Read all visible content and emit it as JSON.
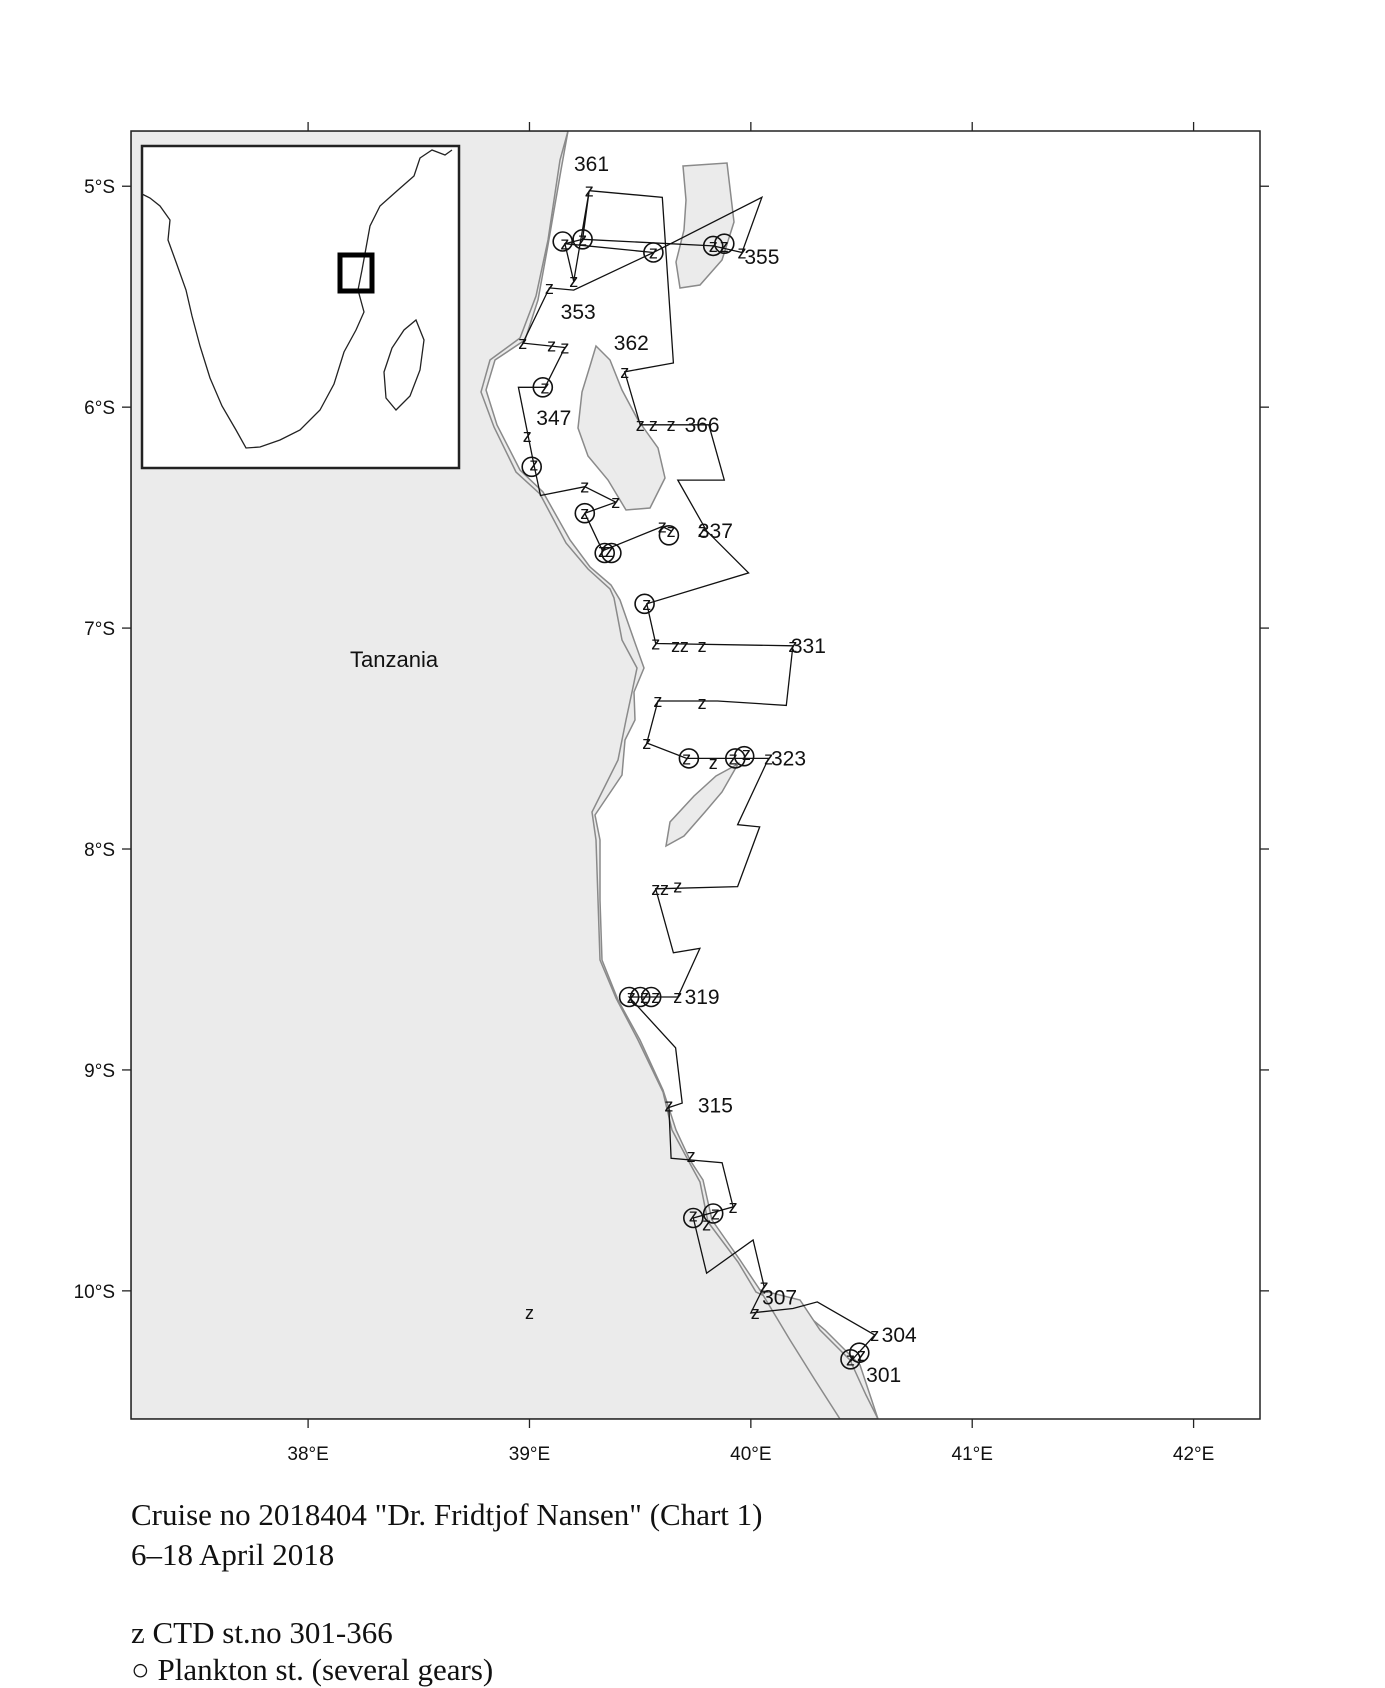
{
  "map": {
    "lon_range": [
      37.2,
      42.3
    ],
    "lat_range": [
      -10.58,
      -4.75
    ],
    "x_ticks": [
      38,
      39,
      40,
      41,
      42
    ],
    "y_ticks": [
      -5,
      -6,
      -7,
      -8,
      -9,
      -10
    ],
    "x_tick_labels": [
      "38°E",
      "39°E",
      "40°E",
      "41°E",
      "42°E"
    ],
    "y_tick_labels": [
      "5°S",
      "6°S",
      "7°S",
      "8°S",
      "9°S",
      "10°S"
    ],
    "country_label": "Tanzania",
    "land_color": "#ebebeb",
    "coast_color": "#8a8a8a",
    "station_labels": [
      {
        "text": "361",
        "lon": 39.28,
        "lat": -4.9
      },
      {
        "text": "355",
        "lon": 40.05,
        "lat": -5.32
      },
      {
        "text": "353",
        "lon": 39.22,
        "lat": -5.57
      },
      {
        "text": "362",
        "lon": 39.46,
        "lat": -5.71
      },
      {
        "text": "347",
        "lon": 39.11,
        "lat": -6.05
      },
      {
        "text": "366",
        "lon": 39.78,
        "lat": -6.08
      },
      {
        "text": "337",
        "lon": 39.84,
        "lat": -6.56
      },
      {
        "text": "331",
        "lon": 40.26,
        "lat": -7.08
      },
      {
        "text": "323",
        "lon": 40.17,
        "lat": -7.59
      },
      {
        "text": "319",
        "lon": 39.78,
        "lat": -8.67
      },
      {
        "text": "315",
        "lon": 39.84,
        "lat": -9.16
      },
      {
        "text": "307",
        "lon": 40.13,
        "lat": -10.03
      },
      {
        "text": "304",
        "lon": 40.67,
        "lat": -10.2
      },
      {
        "text": "301",
        "lon": 40.6,
        "lat": -10.38
      }
    ],
    "ctd_stations": [
      [
        39.27,
        -5.02
      ],
      [
        39.16,
        -5.26
      ],
      [
        39.24,
        -5.24
      ],
      [
        39.56,
        -5.3
      ],
      [
        39.83,
        -5.27
      ],
      [
        39.88,
        -5.27
      ],
      [
        39.96,
        -5.3
      ],
      [
        39.2,
        -5.43
      ],
      [
        39.09,
        -5.46
      ],
      [
        38.97,
        -5.71
      ],
      [
        39.1,
        -5.72
      ],
      [
        39.16,
        -5.73
      ],
      [
        39.43,
        -5.84
      ],
      [
        39.07,
        -5.91
      ],
      [
        39.5,
        -6.08
      ],
      [
        39.56,
        -6.08
      ],
      [
        39.64,
        -6.08
      ],
      [
        38.99,
        -6.13
      ],
      [
        39.02,
        -6.26
      ],
      [
        39.25,
        -6.36
      ],
      [
        39.39,
        -6.43
      ],
      [
        39.25,
        -6.48
      ],
      [
        39.6,
        -6.54
      ],
      [
        39.64,
        -6.56
      ],
      [
        39.78,
        -6.56
      ],
      [
        39.33,
        -6.65
      ],
      [
        39.36,
        -6.65
      ],
      [
        39.53,
        -6.89
      ],
      [
        39.57,
        -7.07
      ],
      [
        39.66,
        -7.08
      ],
      [
        39.7,
        -7.08
      ],
      [
        39.78,
        -7.08
      ],
      [
        40.19,
        -7.08
      ],
      [
        39.58,
        -7.33
      ],
      [
        39.78,
        -7.34
      ],
      [
        39.53,
        -7.52
      ],
      [
        39.71,
        -7.59
      ],
      [
        39.83,
        -7.61
      ],
      [
        39.92,
        -7.59
      ],
      [
        39.98,
        -7.57
      ],
      [
        40.08,
        -7.59
      ],
      [
        39.57,
        -8.18
      ],
      [
        39.61,
        -8.18
      ],
      [
        39.67,
        -8.17
      ],
      [
        39.46,
        -8.67
      ],
      [
        39.52,
        -8.67
      ],
      [
        39.57,
        -8.67
      ],
      [
        39.67,
        -8.67
      ],
      [
        39.63,
        -9.16
      ],
      [
        39.73,
        -9.39
      ],
      [
        39.74,
        -9.66
      ],
      [
        39.8,
        -9.7
      ],
      [
        39.84,
        -9.65
      ],
      [
        39.92,
        -9.62
      ],
      [
        39.0,
        -10.1
      ],
      [
        40.06,
        -9.98
      ],
      [
        40.02,
        -10.1
      ],
      [
        40.45,
        -10.31
      ],
      [
        40.5,
        -10.29
      ],
      [
        40.56,
        -10.2
      ]
    ],
    "plankton_stations": [
      [
        39.15,
        -5.25
      ],
      [
        39.24,
        -5.24
      ],
      [
        39.56,
        -5.3
      ],
      [
        39.83,
        -5.27
      ],
      [
        39.88,
        -5.26
      ],
      [
        39.06,
        -5.91
      ],
      [
        39.01,
        -6.27
      ],
      [
        39.25,
        -6.48
      ],
      [
        39.34,
        -6.66
      ],
      [
        39.37,
        -6.66
      ],
      [
        39.63,
        -6.58
      ],
      [
        39.52,
        -6.89
      ],
      [
        39.72,
        -7.59
      ],
      [
        39.93,
        -7.59
      ],
      [
        39.97,
        -7.58
      ],
      [
        39.45,
        -8.67
      ],
      [
        39.5,
        -8.67
      ],
      [
        39.55,
        -8.67
      ],
      [
        39.74,
        -9.67
      ],
      [
        39.83,
        -9.65
      ],
      [
        40.45,
        -10.31
      ],
      [
        40.49,
        -10.28
      ]
    ],
    "track": [
      [
        39.27,
        -5.02
      ],
      [
        39.6,
        -5.05
      ],
      [
        39.65,
        -5.8
      ],
      [
        39.43,
        -5.84
      ],
      [
        39.5,
        -6.08
      ],
      [
        39.64,
        -6.08
      ],
      [
        39.81,
        -6.08
      ],
      [
        39.88,
        -6.33
      ],
      [
        39.67,
        -6.33
      ],
      [
        39.8,
        -6.56
      ],
      [
        39.99,
        -6.75
      ],
      [
        39.53,
        -6.89
      ],
      [
        39.57,
        -7.07
      ],
      [
        40.19,
        -7.08
      ],
      [
        40.16,
        -7.35
      ],
      [
        39.85,
        -7.33
      ],
      [
        39.58,
        -7.33
      ],
      [
        39.53,
        -7.52
      ],
      [
        39.71,
        -7.59
      ],
      [
        40.08,
        -7.59
      ],
      [
        39.94,
        -7.89
      ],
      [
        40.04,
        -7.9
      ],
      [
        39.94,
        -8.17
      ],
      [
        39.57,
        -8.18
      ],
      [
        39.65,
        -8.47
      ],
      [
        39.77,
        -8.45
      ],
      [
        39.67,
        -8.67
      ],
      [
        39.45,
        -8.67
      ],
      [
        39.66,
        -8.9
      ],
      [
        39.69,
        -9.15
      ],
      [
        39.63,
        -9.17
      ],
      [
        39.64,
        -9.4
      ],
      [
        39.87,
        -9.42
      ],
      [
        39.92,
        -9.62
      ],
      [
        39.74,
        -9.67
      ],
      [
        39.8,
        -9.92
      ],
      [
        40.01,
        -9.77
      ],
      [
        40.06,
        -9.98
      ],
      [
        40.0,
        -10.1
      ],
      [
        40.19,
        -10.08
      ],
      [
        40.3,
        -10.05
      ],
      [
        40.56,
        -10.2
      ],
      [
        40.45,
        -10.32
      ]
    ],
    "track2": [
      [
        39.16,
        -5.26
      ],
      [
        39.56,
        -5.3
      ],
      [
        40.05,
        -5.05
      ],
      [
        39.96,
        -5.3
      ],
      [
        39.83,
        -5.27
      ],
      [
        39.24,
        -5.24
      ],
      [
        39.16,
        -5.26
      ],
      [
        39.2,
        -5.43
      ],
      [
        39.27,
        -5.02
      ],
      [
        39.24,
        -5.24
      ]
    ],
    "track3": [
      [
        39.56,
        -5.3
      ],
      [
        39.2,
        -5.47
      ],
      [
        39.09,
        -5.46
      ],
      [
        38.97,
        -5.71
      ],
      [
        39.16,
        -5.73
      ],
      [
        39.07,
        -5.91
      ],
      [
        38.95,
        -5.91
      ],
      [
        39.02,
        -6.26
      ],
      [
        39.05,
        -6.4
      ],
      [
        39.25,
        -6.36
      ],
      [
        39.39,
        -6.43
      ],
      [
        39.25,
        -6.48
      ],
      [
        39.33,
        -6.65
      ],
      [
        39.6,
        -6.54
      ],
      [
        39.64,
        -6.56
      ]
    ],
    "inset": {
      "land_color": "#ffffff",
      "frame_color": "#222222"
    }
  },
  "caption": {
    "line1": "Cruise no 2018404  \"Dr. Fridtjof Nansen\" (Chart 1)",
    "line2": "6–18 April 2018",
    "legend_ctd": "z  CTD st.no 301-366",
    "legend_plankton": "○ Plankton st. (several gears)"
  }
}
